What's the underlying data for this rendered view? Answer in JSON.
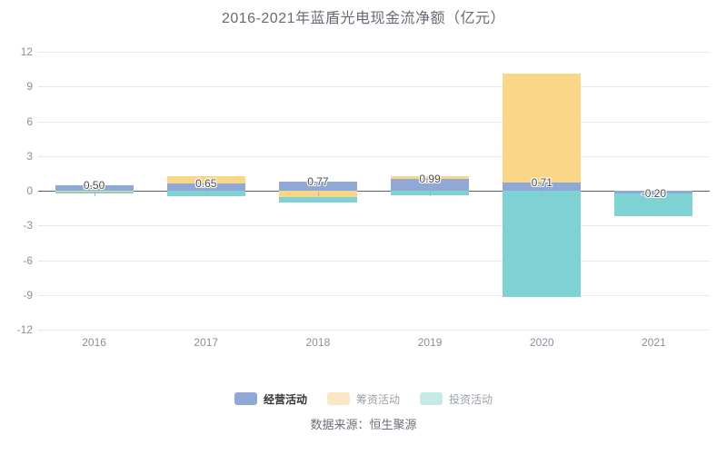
{
  "title": "2016-2021年蓝盾光电现金流净额（亿元）",
  "source": "数据来源：恒生聚源",
  "legend": {
    "items": [
      {
        "label": "经营活动",
        "swatch_color": "#8fa8d5",
        "label_color": "#333333",
        "emphasized": true
      },
      {
        "label": "筹资活动",
        "swatch_color": "#fae7c6",
        "label_color": "#9aa0a6",
        "emphasized": false
      },
      {
        "label": "投资活动",
        "swatch_color": "#c6eae8",
        "label_color": "#9aa0a6",
        "emphasized": false
      }
    ]
  },
  "chart_data": {
    "type": "bar",
    "stacked": true,
    "title": "2016-2021年蓝盾光电现金流净额（亿元）",
    "categories": [
      "2016",
      "2017",
      "2018",
      "2019",
      "2020",
      "2021"
    ],
    "series": [
      {
        "name": "经营活动",
        "color": "#8fa8d5",
        "values": [
          0.5,
          0.65,
          0.77,
          0.99,
          0.71,
          -0.2
        ],
        "labels": [
          "0.50",
          "0.65",
          "0.77",
          "0.99",
          "0.71",
          "-0.20"
        ]
      },
      {
        "name": "筹资活动",
        "color": "#fad689",
        "values": [
          -0.08,
          0.6,
          -0.55,
          0.25,
          9.43,
          0.0
        ]
      },
      {
        "name": "投资活动",
        "color": "#7fd2d4",
        "values": [
          -0.15,
          -0.5,
          -0.45,
          -0.4,
          -9.15,
          -2.0
        ]
      }
    ],
    "ylim": [
      -12,
      12
    ],
    "yticks": [
      12,
      9,
      6,
      3,
      0,
      -3,
      -6,
      -9,
      -12
    ],
    "xlabel": "",
    "ylabel": "",
    "grid": true,
    "legend_position": "bottom",
    "zero_line_color": "#5a5f6b",
    "grid_color": "#e4e8f4"
  }
}
